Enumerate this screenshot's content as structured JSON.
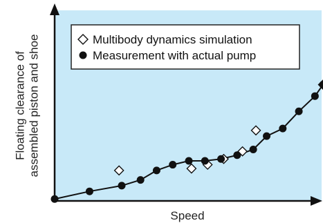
{
  "chart_data": {
    "type": "scatter",
    "xlabel": "Speed",
    "ylabel_lines": [
      "Floating clearance of",
      "assembled piston and shoe"
    ],
    "xlim": [
      0,
      100
    ],
    "ylim": [
      0,
      100
    ],
    "grid": false,
    "legend_position": "top-left",
    "colors": {
      "background": "#c8e9f8",
      "axis": "#111111",
      "measurement": "#111111",
      "simulation_fill": "#ffffff",
      "simulation_stroke": "#111111"
    },
    "series": [
      {
        "name": "Multibody dynamics simulation",
        "marker": "diamond-open",
        "points": [
          [
            24,
            16
          ],
          [
            51,
            17
          ],
          [
            57,
            19
          ],
          [
            63,
            22
          ],
          [
            70,
            26
          ],
          [
            75,
            37
          ],
          [
            100,
            61
          ]
        ]
      },
      {
        "name": "Measurement with actual pump",
        "marker": "circle-filled",
        "connected": true,
        "points": [
          [
            0,
            1
          ],
          [
            13,
            5
          ],
          [
            25,
            8
          ],
          [
            32,
            11
          ],
          [
            38,
            16
          ],
          [
            44,
            19
          ],
          [
            50,
            21
          ],
          [
            56,
            21
          ],
          [
            62,
            22
          ],
          [
            68,
            24
          ],
          [
            74,
            27
          ],
          [
            79,
            34
          ],
          [
            85,
            38
          ],
          [
            91,
            47
          ],
          [
            97,
            55
          ],
          [
            100,
            61
          ]
        ]
      }
    ]
  }
}
